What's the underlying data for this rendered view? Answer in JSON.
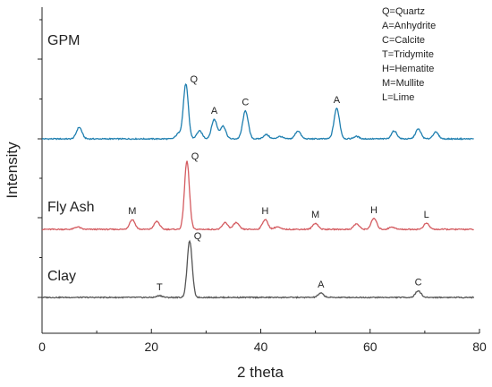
{
  "chart_data": {
    "type": "line",
    "xlabel": "2 theta",
    "ylabel": "Intensity",
    "xlim": [
      0,
      80
    ],
    "xticks": [
      0,
      20,
      40,
      60,
      80
    ],
    "grid": false,
    "legend_position": "top-right",
    "legend": [
      "Q=Quartz",
      "A=Anhydrite",
      "C=Calcite",
      "T=Tridymite",
      "H=Hematite",
      "M=Mullite",
      "L=Lime"
    ],
    "series": [
      {
        "name": "GPM",
        "color": "#1f7fb0",
        "baseline": 10,
        "peaks": [
          [
            6.8,
            1.9
          ],
          [
            25.0,
            0.9
          ],
          [
            26.3,
            9.0
          ],
          [
            28.8,
            1.3
          ],
          [
            31.5,
            3.2
          ],
          [
            33.1,
            2.1
          ],
          [
            37.2,
            4.6
          ],
          [
            41.0,
            0.7
          ],
          [
            43.5,
            0.4
          ],
          [
            46.8,
            1.3
          ],
          [
            53.9,
            5.0
          ],
          [
            57.5,
            0.4
          ],
          [
            64.4,
            1.3
          ],
          [
            68.8,
            1.6
          ],
          [
            72.0,
            1.1
          ]
        ],
        "annotations": [
          {
            "label": "Q",
            "x": 26.3
          },
          {
            "label": "A",
            "x": 31.5
          },
          {
            "label": "C",
            "x": 37.2
          },
          {
            "label": "A",
            "x": 53.9
          }
        ]
      },
      {
        "name": "Fly Ash",
        "color": "#d45b60",
        "baseline": 0,
        "peaks": [
          [
            6.5,
            0.4
          ],
          [
            16.5,
            1.6
          ],
          [
            21.0,
            1.3
          ],
          [
            26.5,
            11.2
          ],
          [
            33.5,
            1.1
          ],
          [
            35.5,
            1.1
          ],
          [
            40.8,
            1.6
          ],
          [
            43.0,
            0.4
          ],
          [
            50.0,
            1.0
          ],
          [
            57.5,
            0.9
          ],
          [
            60.7,
            1.8
          ],
          [
            64.0,
            0.4
          ],
          [
            70.3,
            1.0
          ]
        ],
        "annotations": [
          {
            "label": "Q",
            "x": 26.5
          },
          {
            "label": "M",
            "x": 16.5
          },
          {
            "label": "H",
            "x": 40.8
          },
          {
            "label": "M",
            "x": 50.0
          },
          {
            "label": "H",
            "x": 60.7
          },
          {
            "label": "L",
            "x": 70.3
          }
        ]
      },
      {
        "name": "Clay",
        "color": "#555555",
        "baseline": -10,
        "peaks": [
          [
            21.5,
            0.3
          ],
          [
            27.0,
            9.3
          ],
          [
            51.0,
            0.7
          ],
          [
            68.8,
            1.1
          ]
        ],
        "annotations": [
          {
            "label": "Q",
            "x": 27.0
          },
          {
            "label": "T",
            "x": 21.5
          },
          {
            "label": "A",
            "x": 51.0
          },
          {
            "label": "C",
            "x": 68.8
          }
        ]
      }
    ]
  }
}
